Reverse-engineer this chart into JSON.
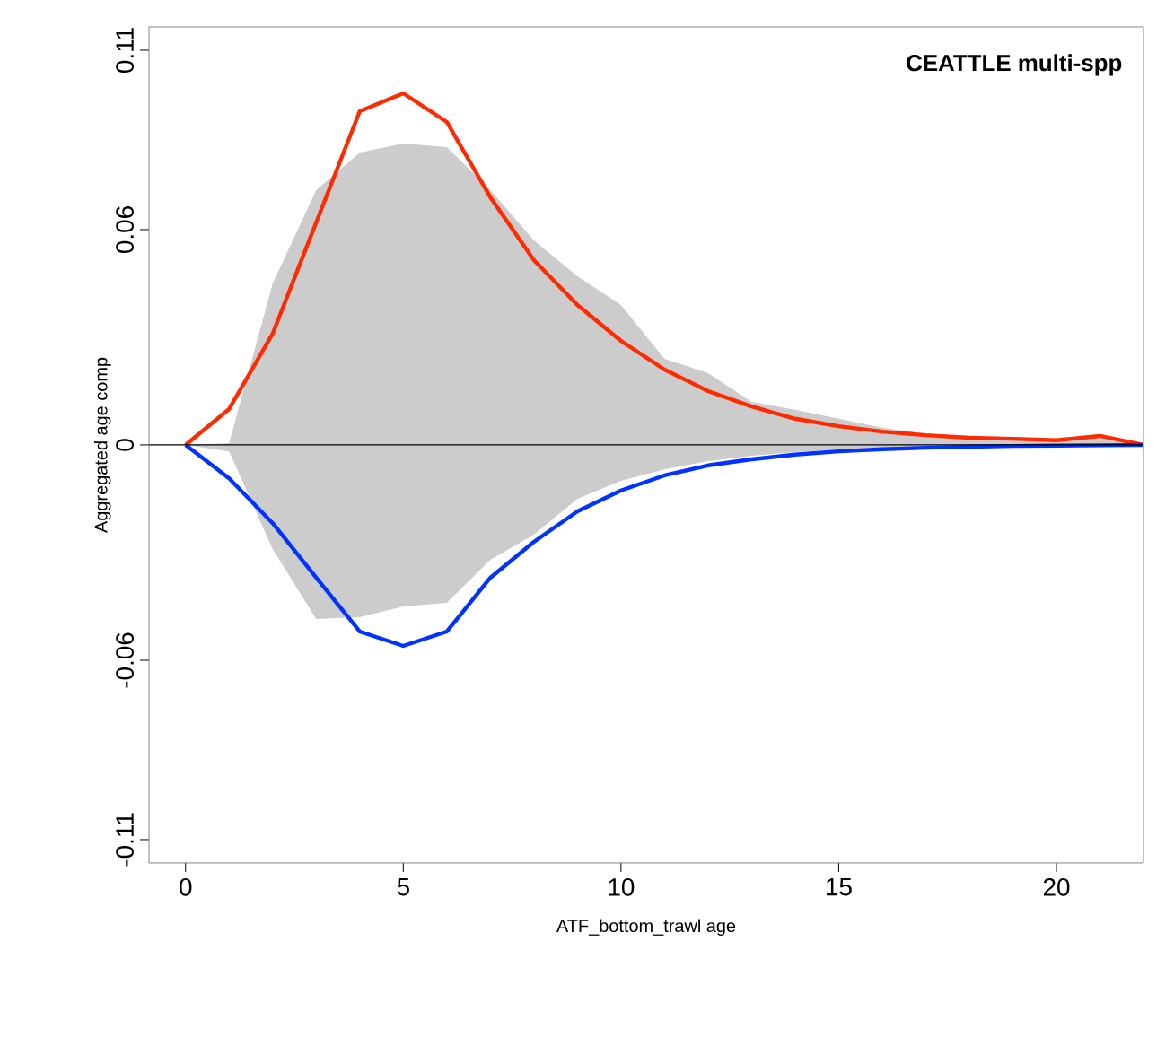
{
  "chart_data": {
    "type": "line",
    "xlabel": "ATF_bottom_trawl age",
    "ylabel": "Aggregated age comp",
    "annotations": [
      "CEATTLE multi-spp"
    ],
    "x": [
      0,
      1,
      2,
      3,
      4,
      5,
      6,
      7,
      8,
      9,
      10,
      11,
      12,
      13,
      14,
      15,
      16,
      17,
      18,
      19,
      20,
      21,
      22
    ],
    "xlim": [
      -0.84,
      22
    ],
    "ylim": [
      -0.1165,
      0.1165
    ],
    "xticks": [
      0,
      5,
      10,
      15,
      20
    ],
    "yticks": [
      -0.11,
      -0.06,
      0,
      0.06,
      0.11
    ],
    "ref_lines": [
      {
        "axis": "y",
        "value": 0,
        "color": "#000000"
      }
    ],
    "series": [
      {
        "type": "area",
        "color": "#cccccc",
        "values": [
          null,
          null,
          null,
          null,
          null,
          null,
          null,
          null,
          null,
          null,
          null,
          null,
          null,
          null,
          null,
          null,
          null,
          null,
          null,
          null,
          null,
          null,
          null
        ],
        "upper": [
          0,
          0.0005,
          0.045,
          0.071,
          0.0815,
          0.084,
          0.083,
          0.071,
          0.057,
          0.047,
          0.039,
          0.024,
          0.02,
          0.012,
          0.0098,
          0.0073,
          0.0048,
          0.0032,
          0.002,
          0.0015,
          0.0012,
          0.002,
          0
        ],
        "lower": [
          0,
          -0.0018,
          -0.029,
          -0.0485,
          -0.048,
          -0.045,
          -0.044,
          -0.032,
          -0.025,
          -0.015,
          -0.01,
          -0.0068,
          -0.0045,
          -0.003,
          -0.002,
          -0.0013,
          -0.0009,
          -0.0006,
          -0.0004,
          -0.0003,
          -0.0002,
          -0.0001,
          0
        ]
      },
      {
        "color": "#ff2a00",
        "values": [
          0,
          0.01,
          0.031,
          0.062,
          0.093,
          0.098,
          0.09,
          0.069,
          0.0515,
          0.039,
          0.029,
          0.021,
          0.015,
          0.0107,
          0.0073,
          0.0052,
          0.0037,
          0.0027,
          0.002,
          0.0017,
          0.0013,
          0.0025,
          0
        ]
      },
      {
        "color": "#0033ff",
        "values": [
          0,
          -0.0093,
          -0.0218,
          -0.037,
          -0.052,
          -0.056,
          -0.052,
          -0.037,
          -0.027,
          -0.0185,
          -0.0127,
          -0.0085,
          -0.0057,
          -0.004,
          -0.0027,
          -0.0018,
          -0.0012,
          -0.0008,
          -0.0005,
          -0.0003,
          -0.0002,
          -0.0001,
          0
        ]
      }
    ]
  }
}
